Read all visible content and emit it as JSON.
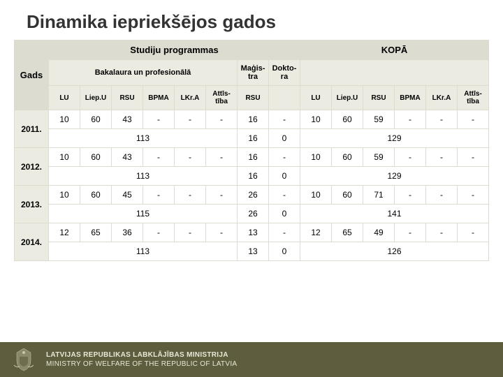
{
  "title": "Dinamika iepriekšējos gados",
  "headers": {
    "gads": "Gads",
    "studiju": "Studiju programmas",
    "kopa": "KOPĀ",
    "bakalaura": "Bakalaura un profesionālā",
    "magistra": "Maģis-tra",
    "doktora": "Dokto-ra",
    "cols": [
      "LU",
      "Liep.U",
      "RSU",
      "BPMA",
      "LKr.A",
      "Attīs-tība",
      "RSU",
      "",
      "LU",
      "Liep.U",
      "RSU",
      "BPMA",
      "LKr.A",
      "Attīs-tība"
    ]
  },
  "rows": [
    {
      "year": "2011.",
      "data": [
        "10",
        "60",
        "43",
        "-",
        "-",
        "-",
        "16",
        "-",
        "10",
        "60",
        "59",
        "-",
        "-",
        "-"
      ],
      "sub": [
        "113",
        "16",
        "0",
        "129"
      ]
    },
    {
      "year": "2012.",
      "data": [
        "10",
        "60",
        "43",
        "-",
        "-",
        "-",
        "16",
        "-",
        "10",
        "60",
        "59",
        "-",
        "-",
        "-"
      ],
      "sub": [
        "113",
        "16",
        "0",
        "129"
      ]
    },
    {
      "year": "2013.",
      "data": [
        "10",
        "60",
        "45",
        "-",
        "-",
        "-",
        "26",
        "-",
        "10",
        "60",
        "71",
        "-",
        "-",
        "-"
      ],
      "sub": [
        "115",
        "26",
        "0",
        "141"
      ]
    },
    {
      "year": "2014.",
      "data": [
        "12",
        "65",
        "36",
        "-",
        "-",
        "-",
        "13",
        "-",
        "12",
        "65",
        "49",
        "-",
        "-",
        "-"
      ],
      "sub": [
        "113",
        "13",
        "0",
        "126"
      ]
    }
  ],
  "footer": {
    "line1": "LATVIJAS REPUBLIKAS LABKLĀJĪBAS MINISTRIJA",
    "line2": "MINISTRY OF WELFARE OF THE REPUBLIC OF LATVIA"
  },
  "colors": {
    "hdr_dark": "#dcdcd0",
    "hdr_light": "#ebebe2",
    "footer": "#5e5e3e"
  }
}
